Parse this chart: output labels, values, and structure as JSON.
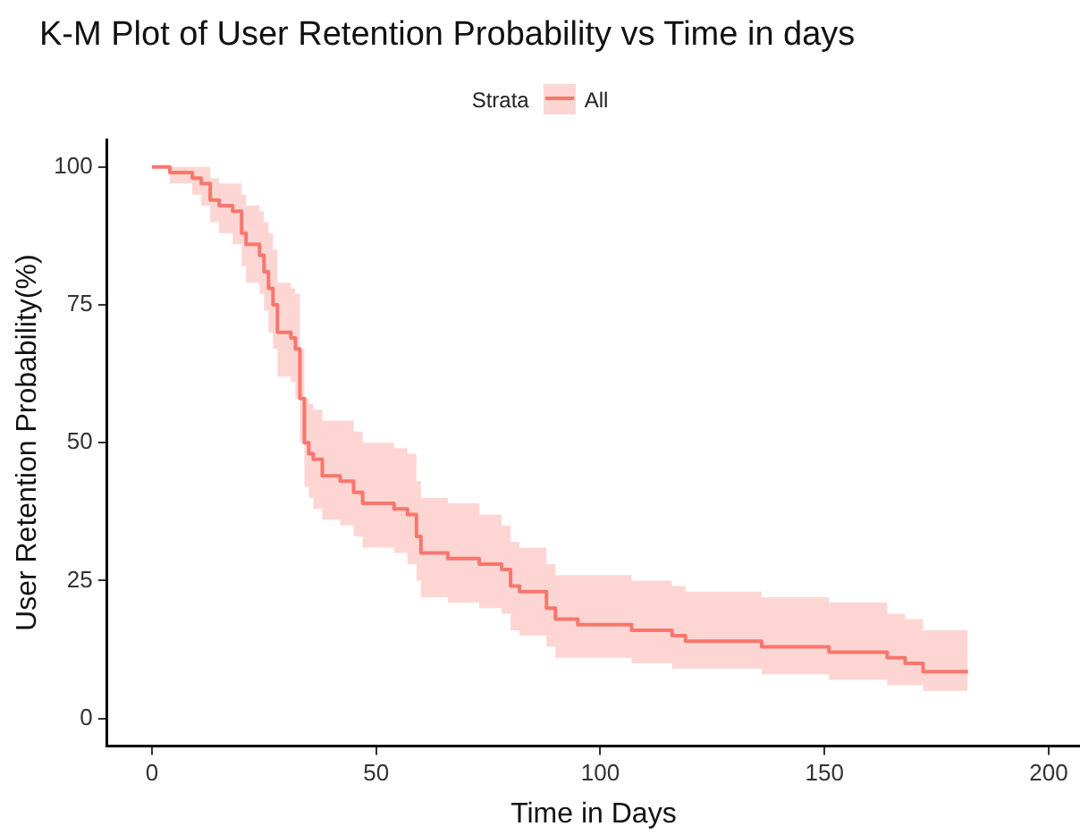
{
  "chart_data": {
    "type": "step",
    "title": "K-M Plot of User Retention Probability vs Time in days",
    "xlabel": "Time in Days",
    "ylabel": "User Retention Probability(%)",
    "legend_title": "Strata",
    "legend": "top",
    "grid": false,
    "xlim": [
      -10,
      207
    ],
    "xticks": [
      0,
      50,
      100,
      150,
      200
    ],
    "ylim": [
      -5,
      105
    ],
    "yticks": [
      0,
      25,
      50,
      75,
      100
    ],
    "series": [
      {
        "name": "All",
        "color": "#f8766d",
        "x": [
          0,
          4,
          9,
          11,
          13,
          15,
          18,
          20,
          21,
          24,
          25,
          26,
          27,
          28,
          31,
          32,
          33,
          34,
          35,
          36,
          38,
          42,
          45,
          47,
          54,
          57,
          59,
          60,
          66,
          73,
          78,
          80,
          82,
          88,
          90,
          95,
          107,
          116,
          119,
          136,
          151,
          164,
          168,
          172,
          182
        ],
        "values": [
          100,
          99,
          98,
          97,
          94,
          93,
          92,
          88,
          86,
          84,
          81,
          78,
          75,
          70,
          69,
          67,
          58,
          50,
          48,
          47,
          44,
          43,
          41,
          39,
          38,
          37,
          33,
          30,
          29,
          28,
          27,
          24,
          23,
          20,
          18,
          17,
          16,
          15,
          14,
          13,
          12,
          11,
          10,
          8.5,
          8.5
        ],
        "lower": [
          100,
          97,
          95,
          93,
          90,
          88,
          86,
          82,
          79,
          77,
          74,
          70,
          67,
          62,
          61,
          58,
          50,
          42,
          40,
          38,
          36,
          35,
          33,
          31,
          30,
          28,
          25,
          22,
          21,
          20,
          19,
          16,
          15,
          13,
          11,
          11,
          10,
          9,
          9,
          8,
          7,
          6,
          6,
          5,
          5
        ],
        "upper": [
          100,
          100,
          100,
          100,
          98,
          97,
          97,
          95,
          93,
          92,
          90,
          88,
          85,
          79,
          78,
          77,
          67,
          58,
          57,
          56,
          54,
          54,
          52,
          50,
          49,
          48,
          43,
          40,
          39,
          37,
          35,
          32,
          31,
          28,
          26,
          26,
          25,
          24,
          23,
          22,
          21,
          19,
          18,
          16,
          16
        ]
      }
    ]
  }
}
